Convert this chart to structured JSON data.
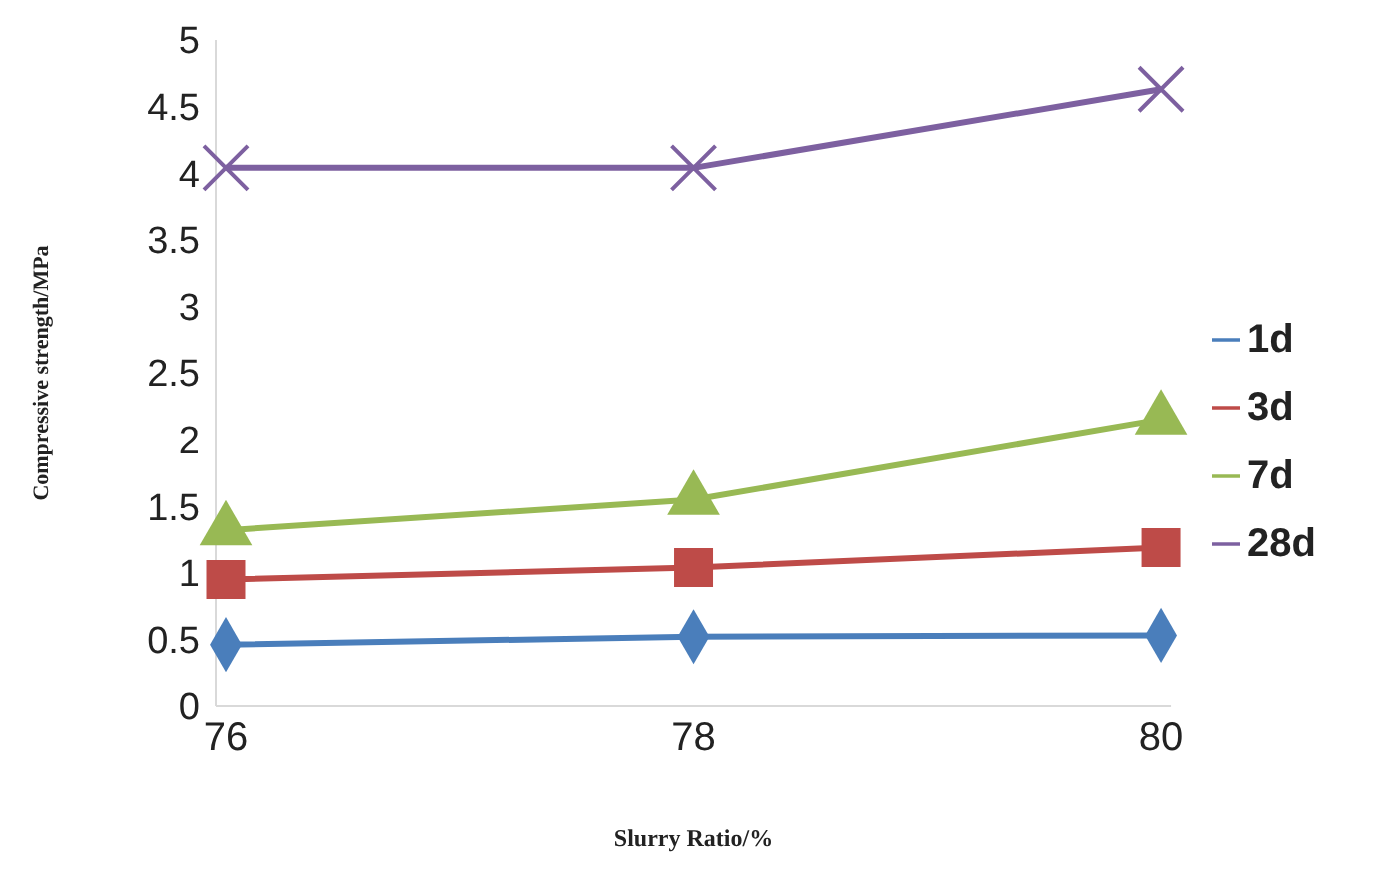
{
  "chart_data": {
    "type": "line",
    "xlabel": "Slurry Ratio/%",
    "ylabel": "Compressive strength/MPa",
    "categories": [
      "76",
      "78",
      "80"
    ],
    "series": [
      {
        "name": "1d",
        "color": "#4a7ebb",
        "marker": "diamond",
        "values": [
          0.46,
          0.52,
          0.53
        ]
      },
      {
        "name": "3d",
        "color": "#be4b48",
        "marker": "square",
        "values": [
          0.95,
          1.04,
          1.19
        ]
      },
      {
        "name": "7d",
        "color": "#98b954",
        "marker": "triangle",
        "values": [
          1.32,
          1.55,
          2.15
        ]
      },
      {
        "name": "28d",
        "color": "#7d60a0",
        "marker": "cross",
        "values": [
          4.04,
          4.04,
          4.63
        ]
      }
    ],
    "ylim": [
      0,
      5
    ],
    "yticks": [
      0,
      0.5,
      1,
      1.5,
      2,
      2.5,
      3,
      3.5,
      4,
      4.5,
      5
    ],
    "grid": false,
    "legend": "right"
  }
}
